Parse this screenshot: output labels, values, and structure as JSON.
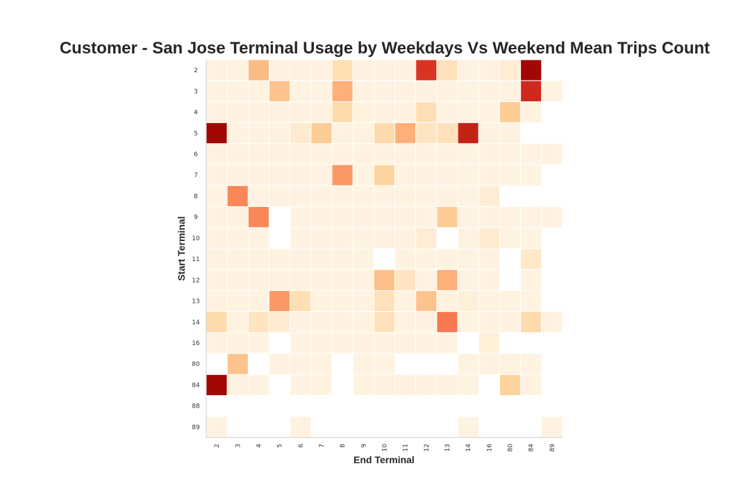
{
  "chart_data": {
    "type": "heatmap",
    "title": "Customer - San Jose Terminal Usage by Weekdays Vs Weekend Mean Trips Count",
    "xlabel": "End Terminal",
    "ylabel": "Start Terminal",
    "colormap": "OrRd",
    "grid": false,
    "x_categories": [
      "2",
      "3",
      "4",
      "5",
      "6",
      "7",
      "8",
      "9",
      "10",
      "11",
      "12",
      "13",
      "14",
      "16",
      "80",
      "84",
      "89"
    ],
    "y_categories": [
      "2",
      "3",
      "4",
      "5",
      "6",
      "7",
      "8",
      "9",
      "10",
      "11",
      "12",
      "13",
      "14",
      "16",
      "80",
      "84",
      "88",
      "89"
    ],
    "values": [
      [
        0.05,
        0.05,
        0.45,
        0.05,
        0.05,
        0.05,
        0.22,
        0.05,
        0.05,
        0.05,
        0.85,
        0.2,
        0.05,
        0.05,
        0.1,
        0.98,
        null
      ],
      [
        0.05,
        0.05,
        0.05,
        0.4,
        0.05,
        0.05,
        0.48,
        0.05,
        0.05,
        0.05,
        0.05,
        0.05,
        0.05,
        0.05,
        0.05,
        0.88,
        0.05
      ],
      [
        0.05,
        0.05,
        0.05,
        0.05,
        0.05,
        0.05,
        0.25,
        0.05,
        0.05,
        0.05,
        0.22,
        0.05,
        0.05,
        0.05,
        0.35,
        0.05,
        null
      ],
      [
        0.98,
        0.05,
        0.05,
        0.05,
        0.12,
        0.35,
        0.05,
        0.05,
        0.25,
        0.48,
        0.18,
        0.2,
        0.9,
        0.05,
        0.05,
        null,
        null
      ],
      [
        0.05,
        0.05,
        0.05,
        0.05,
        0.05,
        0.05,
        0.05,
        0.05,
        0.05,
        0.05,
        0.05,
        0.05,
        0.05,
        0.05,
        0.05,
        0.05,
        0.05
      ],
      [
        0.05,
        0.05,
        0.05,
        0.05,
        0.05,
        0.05,
        0.55,
        0.05,
        0.3,
        0.05,
        0.05,
        0.05,
        0.05,
        0.05,
        0.05,
        0.05,
        null
      ],
      [
        0.05,
        0.6,
        0.05,
        0.05,
        0.05,
        0.05,
        0.05,
        0.05,
        0.05,
        0.05,
        0.05,
        0.05,
        0.05,
        0.1,
        null,
        null,
        null
      ],
      [
        0.05,
        0.05,
        0.6,
        null,
        0.05,
        0.05,
        0.05,
        0.05,
        0.05,
        0.05,
        0.05,
        0.35,
        0.05,
        0.05,
        0.05,
        0.05,
        0.05
      ],
      [
        0.05,
        0.05,
        0.05,
        null,
        0.05,
        0.05,
        0.05,
        0.05,
        0.05,
        0.05,
        0.1,
        null,
        0.05,
        0.12,
        0.05,
        0.05,
        null
      ],
      [
        0.05,
        0.05,
        0.05,
        0.05,
        0.05,
        0.05,
        0.05,
        0.05,
        null,
        0.05,
        0.05,
        0.05,
        0.05,
        0.05,
        null,
        0.15,
        null
      ],
      [
        0.05,
        0.05,
        0.05,
        0.05,
        0.05,
        0.05,
        0.05,
        0.05,
        0.42,
        0.18,
        0.05,
        0.48,
        0.05,
        0.05,
        null,
        0.05,
        null
      ],
      [
        0.05,
        0.05,
        0.05,
        0.55,
        0.22,
        0.05,
        0.05,
        0.05,
        0.2,
        0.05,
        0.4,
        0.05,
        0.08,
        0.05,
        0.05,
        0.05,
        null
      ],
      [
        0.25,
        0.05,
        0.18,
        0.12,
        0.05,
        0.05,
        0.05,
        0.05,
        0.2,
        0.05,
        0.05,
        0.65,
        0.05,
        0.05,
        0.05,
        0.25,
        0.05
      ],
      [
        0.05,
        0.05,
        0.05,
        null,
        0.05,
        0.05,
        0.05,
        0.05,
        0.05,
        0.05,
        0.05,
        0.05,
        null,
        0.08,
        null,
        null,
        null
      ],
      [
        null,
        0.4,
        null,
        0.05,
        0.05,
        0.05,
        null,
        0.05,
        0.05,
        null,
        null,
        null,
        0.05,
        0.05,
        0.05,
        0.05,
        null
      ],
      [
        0.98,
        0.05,
        0.05,
        null,
        0.05,
        0.05,
        null,
        0.05,
        0.05,
        0.05,
        0.05,
        0.05,
        0.05,
        null,
        0.3,
        0.05,
        null
      ],
      [
        null,
        null,
        null,
        null,
        null,
        null,
        null,
        null,
        null,
        null,
        null,
        null,
        null,
        null,
        null,
        null,
        null
      ],
      [
        0.05,
        null,
        null,
        null,
        0.05,
        null,
        null,
        null,
        null,
        null,
        null,
        null,
        0.05,
        null,
        null,
        null,
        0.05
      ]
    ]
  }
}
